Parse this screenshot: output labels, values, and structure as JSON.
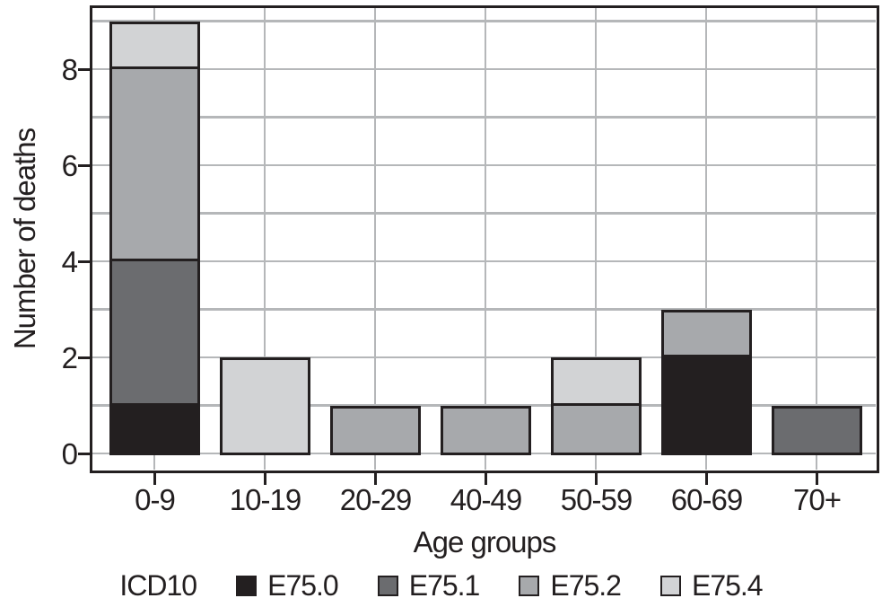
{
  "chart_data": {
    "type": "bar",
    "stacked": true,
    "title": "",
    "xlabel": "Age groups",
    "ylabel": "Number of deaths",
    "categories": [
      "0-9",
      "10-19",
      "20-29",
      "40-49",
      "50-59",
      "60-69",
      "70+"
    ],
    "series": [
      {
        "name": "E75.0",
        "color": "#231f20",
        "values": [
          1,
          0,
          0,
          0,
          0,
          2,
          0
        ]
      },
      {
        "name": "E75.1",
        "color": "#6b6c6f",
        "values": [
          3,
          0,
          0,
          0,
          0,
          0,
          1
        ]
      },
      {
        "name": "E75.2",
        "color": "#a7a9ac",
        "values": [
          4,
          0,
          1,
          1,
          1,
          1,
          0
        ]
      },
      {
        "name": "E75.4",
        "color": "#d2d3d5",
        "values": [
          1,
          2,
          0,
          0,
          1,
          0,
          0
        ]
      }
    ],
    "totals": [
      9,
      2,
      1,
      1,
      2,
      3,
      1
    ],
    "ylim": [
      -0.35,
      9.25
    ],
    "yticks_labeled": [
      "0",
      "2",
      "4",
      "6",
      "8"
    ],
    "ytick_values": [
      0,
      2,
      4,
      6,
      8
    ],
    "gridline_values": [
      0,
      1,
      2,
      3,
      4,
      5,
      6,
      7,
      8,
      9
    ],
    "grid": true,
    "legend_title": "ICD10",
    "legend_position": "bottom",
    "colors": {
      "ink": "#231f20",
      "gridline": "#b5b7b9",
      "background": "#ffffff"
    }
  }
}
